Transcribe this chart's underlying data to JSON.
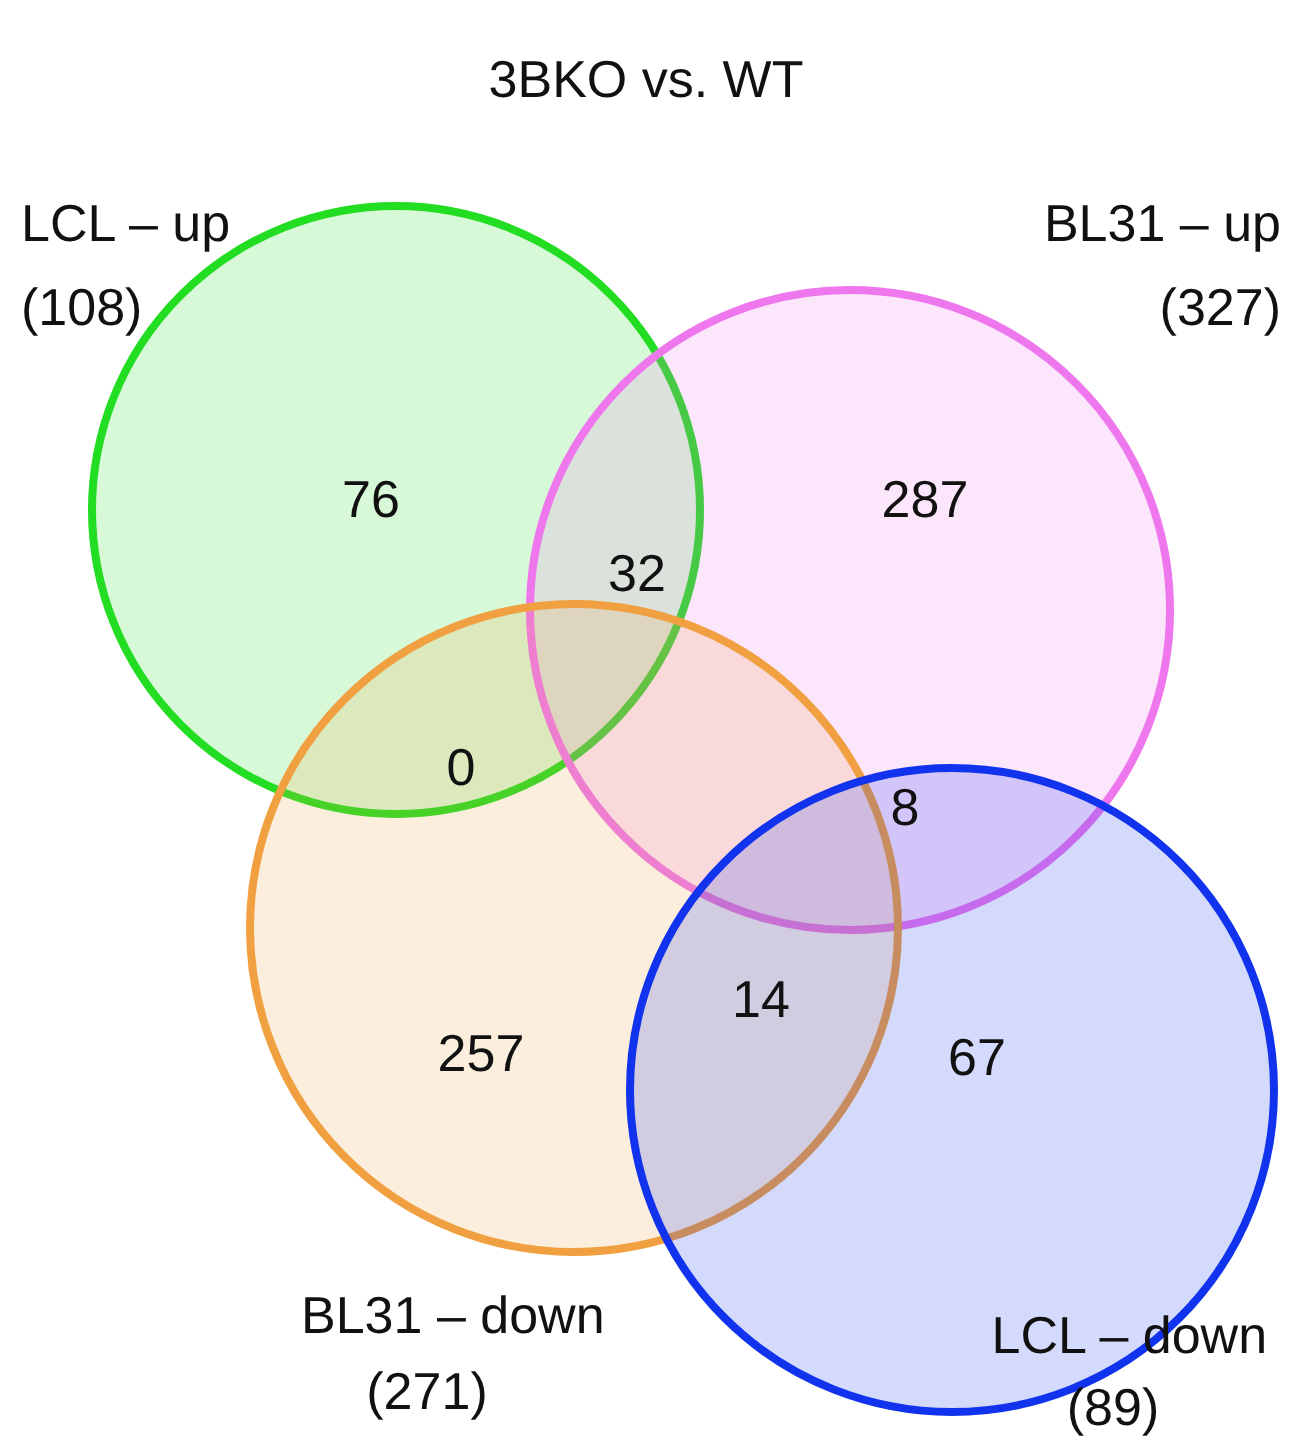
{
  "chart_data": {
    "type": "other",
    "title": "3BKO vs. WT",
    "categories": [
      "LCL – up",
      "BL31 – up",
      "BL31 – down",
      "LCL – down"
    ],
    "values": [
      108,
      327,
      271,
      89
    ],
    "value_labels": [
      "(108)",
      "(327)",
      "(271)",
      "(89)"
    ],
    "colors": [
      "#22dd22",
      "#ee77ee",
      "#f0a040",
      "#1133ee"
    ],
    "annotations": [
      "76",
      "32",
      "287",
      "0",
      "8",
      "14",
      "257",
      "67"
    ]
  }
}
